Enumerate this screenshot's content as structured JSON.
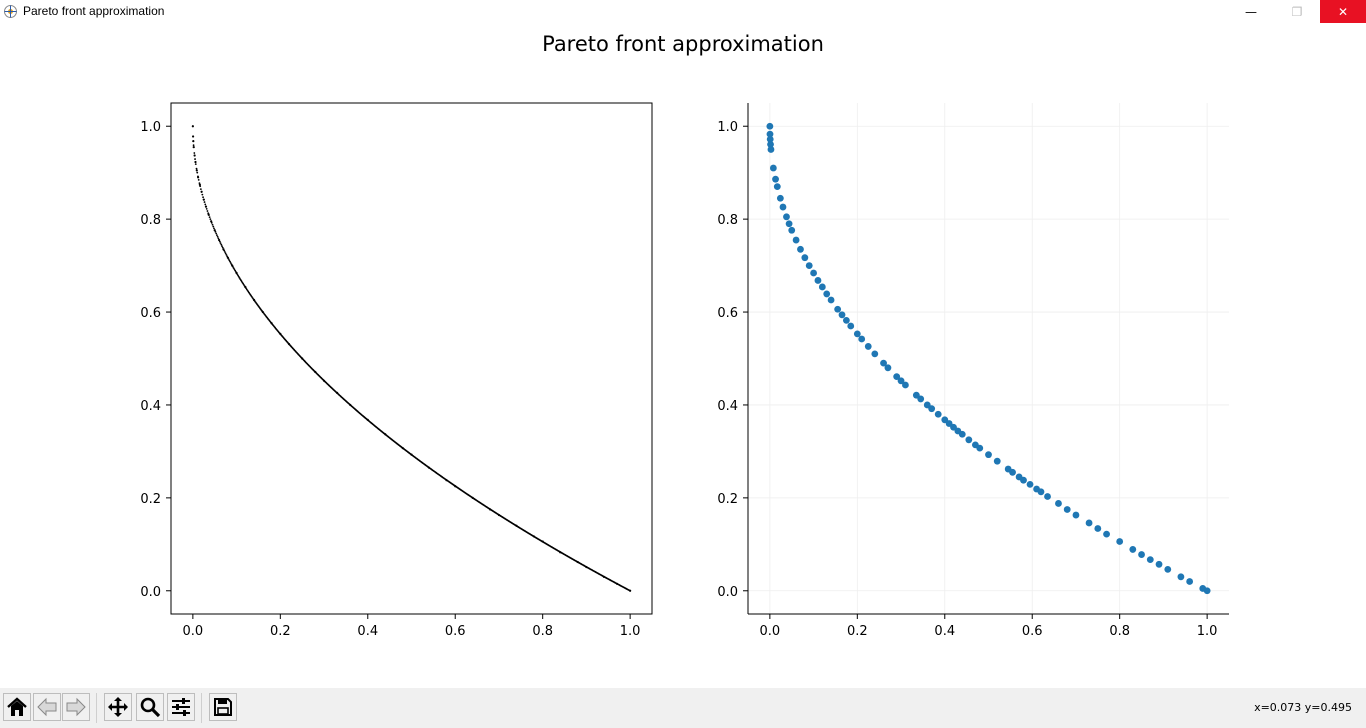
{
  "window": {
    "title": "Pareto front approximation",
    "controls": {
      "minimize": "—",
      "maximize": "❐",
      "close": "✕"
    }
  },
  "figure": {
    "suptitle": "Pareto front approximation"
  },
  "chart_data": [
    {
      "type": "scatter",
      "name": "left",
      "marker": "tiny-dot",
      "color": "#000000",
      "frame": "box",
      "grid": false,
      "xlim": [
        -0.05,
        1.05
      ],
      "ylim": [
        -0.05,
        1.05
      ],
      "xticks": [
        "0.0",
        "0.2",
        "0.4",
        "0.6",
        "0.8",
        "1.0"
      ],
      "yticks": [
        "0.0",
        "0.2",
        "0.4",
        "0.6",
        "0.8",
        "1.0"
      ],
      "curve": "y = 1 - sqrt(x)",
      "x": [
        0.0,
        0.0005,
        0.001,
        0.002,
        0.004,
        0.006,
        0.009,
        0.012,
        0.016,
        0.02,
        0.025,
        0.03,
        0.036,
        0.042,
        0.05,
        0.06,
        0.07,
        0.08,
        0.09,
        0.1,
        0.12,
        0.14,
        0.16,
        0.18,
        0.2,
        0.22,
        0.25,
        0.28,
        0.3,
        0.33,
        0.36,
        0.4,
        0.44,
        0.48,
        0.5,
        0.54,
        0.58,
        0.6,
        0.64,
        0.68,
        0.7,
        0.74,
        0.78,
        0.8,
        0.84,
        0.88,
        0.9,
        0.94,
        0.97,
        1.0
      ],
      "y": [
        1.0,
        0.978,
        0.968,
        0.955,
        0.937,
        0.923,
        0.905,
        0.89,
        0.874,
        0.859,
        0.842,
        0.827,
        0.81,
        0.795,
        0.776,
        0.755,
        0.735,
        0.717,
        0.7,
        0.684,
        0.654,
        0.626,
        0.6,
        0.576,
        0.553,
        0.531,
        0.5,
        0.471,
        0.452,
        0.426,
        0.4,
        0.368,
        0.337,
        0.307,
        0.293,
        0.265,
        0.238,
        0.225,
        0.2,
        0.175,
        0.163,
        0.14,
        0.117,
        0.106,
        0.083,
        0.062,
        0.051,
        0.03,
        0.015,
        0.0
      ]
    },
    {
      "type": "scatter",
      "name": "right",
      "marker": "circle",
      "color": "#1f77b4",
      "frame": "left-bottom",
      "grid": true,
      "xlim": [
        -0.05,
        1.05
      ],
      "ylim": [
        -0.05,
        1.05
      ],
      "xticks": [
        "0.0",
        "0.2",
        "0.4",
        "0.6",
        "0.8",
        "1.0"
      ],
      "yticks": [
        "0.0",
        "0.2",
        "0.4",
        "0.6",
        "0.8",
        "1.0"
      ],
      "x": [
        0.0,
        0.0003,
        0.0008,
        0.0015,
        0.0025,
        0.008,
        0.013,
        0.017,
        0.024,
        0.03,
        0.038,
        0.044,
        0.05,
        0.06,
        0.07,
        0.08,
        0.09,
        0.1,
        0.11,
        0.12,
        0.13,
        0.14,
        0.155,
        0.165,
        0.175,
        0.185,
        0.2,
        0.21,
        0.225,
        0.24,
        0.26,
        0.27,
        0.29,
        0.3,
        0.31,
        0.335,
        0.345,
        0.36,
        0.37,
        0.385,
        0.4,
        0.41,
        0.42,
        0.43,
        0.44,
        0.455,
        0.47,
        0.48,
        0.5,
        0.52,
        0.545,
        0.555,
        0.57,
        0.58,
        0.595,
        0.61,
        0.62,
        0.635,
        0.66,
        0.68,
        0.7,
        0.73,
        0.75,
        0.77,
        0.8,
        0.83,
        0.85,
        0.87,
        0.89,
        0.91,
        0.94,
        0.96,
        0.99,
        1.0
      ],
      "y": [
        1.0,
        0.983,
        0.972,
        0.961,
        0.95,
        0.91,
        0.886,
        0.87,
        0.845,
        0.826,
        0.805,
        0.79,
        0.776,
        0.755,
        0.735,
        0.717,
        0.7,
        0.684,
        0.668,
        0.654,
        0.639,
        0.626,
        0.606,
        0.594,
        0.582,
        0.57,
        0.553,
        0.542,
        0.526,
        0.51,
        0.49,
        0.48,
        0.461,
        0.452,
        0.443,
        0.421,
        0.413,
        0.4,
        0.392,
        0.38,
        0.368,
        0.36,
        0.352,
        0.344,
        0.337,
        0.325,
        0.314,
        0.307,
        0.293,
        0.279,
        0.262,
        0.255,
        0.245,
        0.238,
        0.229,
        0.219,
        0.213,
        0.203,
        0.188,
        0.175,
        0.163,
        0.146,
        0.134,
        0.122,
        0.106,
        0.089,
        0.078,
        0.067,
        0.057,
        0.046,
        0.03,
        0.02,
        0.005,
        0.0
      ]
    }
  ],
  "toolbar": {
    "buttons": [
      "home-icon",
      "back-icon",
      "forward-icon",
      "pan-icon",
      "zoom-icon",
      "configure-icon",
      "save-icon"
    ],
    "coords": "x=0.073 y=0.495"
  }
}
